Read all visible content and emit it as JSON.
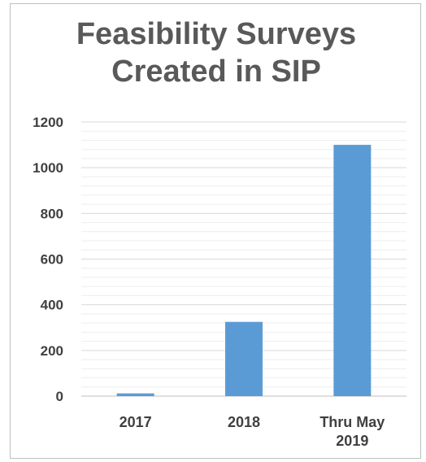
{
  "chart_data": {
    "type": "bar",
    "title_lines": [
      "Feasibility Surveys",
      "Created in SIP"
    ],
    "categories": [
      [
        "2017"
      ],
      [
        "2018"
      ],
      [
        "Thru May",
        "2019"
      ]
    ],
    "values": [
      12,
      325,
      1100
    ],
    "yticks": [
      0,
      200,
      400,
      600,
      800,
      1000,
      1200
    ],
    "ylim": [
      0,
      1200
    ],
    "minor_step": 40,
    "grid": true,
    "legend": "none",
    "bar_color": "#5b9bd5",
    "grid_major_color": "#d9d9d9",
    "grid_minor_color": "#eeeeee"
  }
}
